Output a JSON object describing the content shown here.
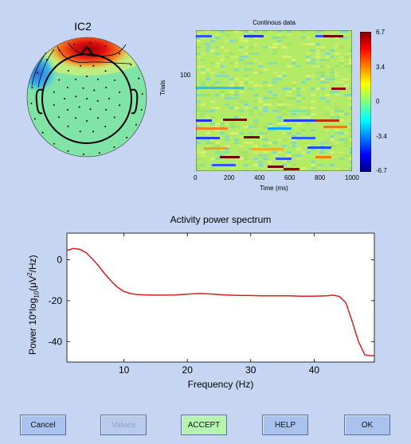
{
  "topo": {
    "title": "IC2"
  },
  "erpimage": {
    "title": "Continous data",
    "ylabel": "Trials",
    "xlabel": "Time (ms)",
    "yticks": [
      "100"
    ],
    "xticks": [
      "0",
      "200",
      "400",
      "600",
      "800",
      "1000"
    ],
    "colorbar_ticks": [
      "6.7",
      "3.4",
      "0",
      "-3.4",
      "-6.7"
    ]
  },
  "spectrum": {
    "title": "Activity power spectrum",
    "xlabel": "Frequency (Hz)",
    "ylabel_prefix": "Power 10*log",
    "ylabel_sub": "10",
    "ylabel_paren": "(",
    "ylabel_mu": "μ",
    "ylabel_V": "V",
    "ylabel_sup": "2",
    "ylabel_suffix": "/Hz)",
    "yticks": [
      "0",
      "-20",
      "-40"
    ],
    "xticks": [
      "10",
      "20",
      "30",
      "40"
    ],
    "line_color": "#d42020"
  },
  "chart_data": {
    "type": "line",
    "title": "Activity power spectrum",
    "xlabel": "Frequency (Hz)",
    "ylabel": "Power 10*log10(μV2/Hz)",
    "xlim": [
      1,
      49.5
    ],
    "ylim": [
      -50,
      13
    ],
    "series": [
      {
        "x": [
          1,
          2,
          3,
          4,
          5,
          6,
          7,
          8,
          9,
          10,
          11,
          12,
          14,
          16,
          18,
          20,
          22,
          24,
          26,
          28,
          30,
          32,
          34,
          36,
          38,
          40,
          42,
          43,
          44,
          45,
          46,
          47,
          48,
          49,
          49.5
        ],
        "y": [
          4.5,
          5.5,
          5.2,
          3.5,
          0.5,
          -3,
          -7,
          -10.5,
          -13.5,
          -15.5,
          -16.5,
          -17,
          -17.3,
          -17.3,
          -17.2,
          -16.8,
          -16.5,
          -16.8,
          -17.2,
          -17.4,
          -17.5,
          -17.6,
          -17.6,
          -17.6,
          -17.8,
          -17.8,
          -17.6,
          -17.3,
          -18,
          -21,
          -30,
          -40,
          -46.5,
          -47,
          -46.8
        ]
      }
    ]
  },
  "buttons": {
    "cancel": "Cancel",
    "values": "Values",
    "accept": "ACCEPT",
    "help": "HELP",
    "ok": "OK"
  }
}
